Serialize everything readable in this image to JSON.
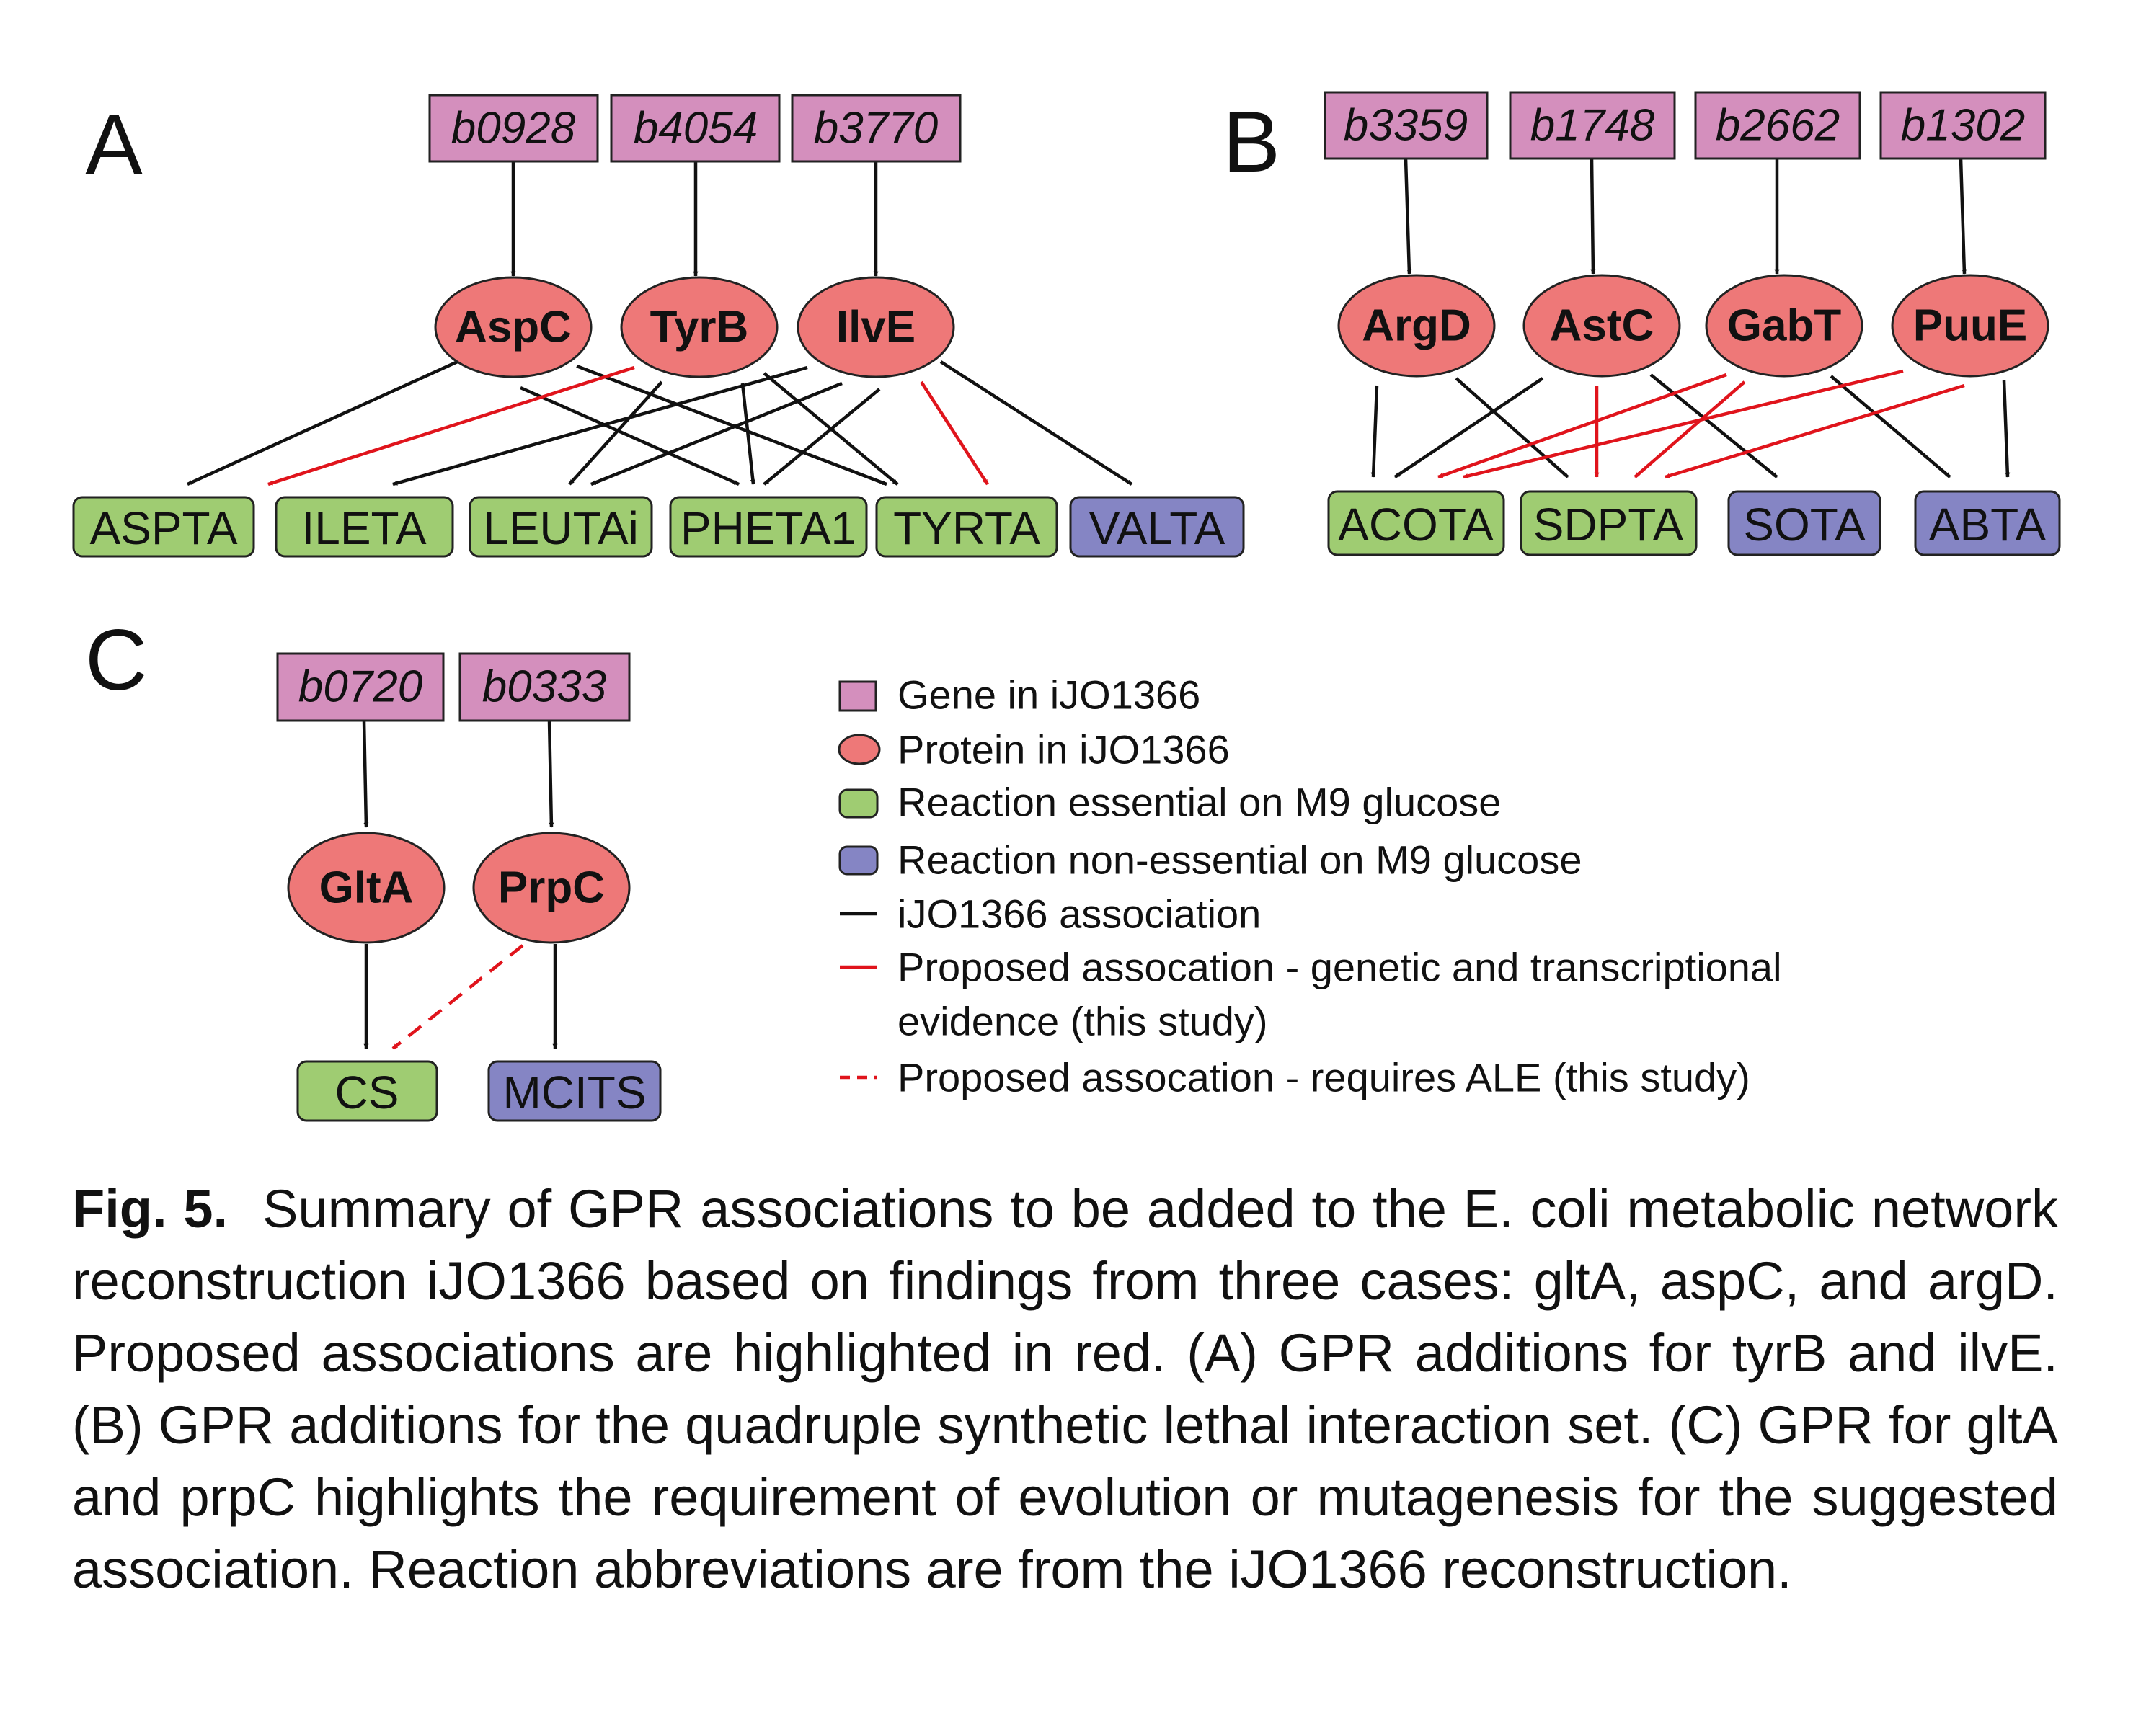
{
  "panels": {
    "A": {
      "letter": "A",
      "genes": [
        "b0928",
        "b4054",
        "b3770"
      ],
      "proteins": [
        "AspC",
        "TyrB",
        "IlvE"
      ],
      "reactions": [
        {
          "name": "ASPTA",
          "class": "essential"
        },
        {
          "name": "ILETA",
          "class": "essential"
        },
        {
          "name": "LEUTAi",
          "class": "essential"
        },
        {
          "name": "PHETA1",
          "class": "essential"
        },
        {
          "name": "TYRTA",
          "class": "essential"
        },
        {
          "name": "VALTA",
          "class": "non-essential"
        }
      ],
      "gene_protein": [
        [
          "b0928",
          "AspC"
        ],
        [
          "b4054",
          "TyrB"
        ],
        [
          "b3770",
          "IlvE"
        ]
      ],
      "protein_reaction": [
        {
          "from": "AspC",
          "to": "ASPTA",
          "type": "iJO1366"
        },
        {
          "from": "AspC",
          "to": "PHETA1",
          "type": "iJO1366"
        },
        {
          "from": "AspC",
          "to": "TYRTA",
          "type": "iJO1366"
        },
        {
          "from": "TyrB",
          "to": "ASPTA",
          "type": "proposed"
        },
        {
          "from": "TyrB",
          "to": "LEUTAi",
          "type": "iJO1366"
        },
        {
          "from": "TyrB",
          "to": "PHETA1",
          "type": "iJO1366"
        },
        {
          "from": "TyrB",
          "to": "TYRTA",
          "type": "iJO1366"
        },
        {
          "from": "IlvE",
          "to": "ILETA",
          "type": "iJO1366"
        },
        {
          "from": "IlvE",
          "to": "LEUTAi",
          "type": "iJO1366"
        },
        {
          "from": "IlvE",
          "to": "PHETA1",
          "type": "iJO1366"
        },
        {
          "from": "IlvE",
          "to": "TYRTA",
          "type": "proposed"
        },
        {
          "from": "IlvE",
          "to": "VALTA",
          "type": "iJO1366"
        }
      ]
    },
    "B": {
      "letter": "B",
      "genes": [
        "b3359",
        "b1748",
        "b2662",
        "b1302"
      ],
      "proteins": [
        "ArgD",
        "AstC",
        "GabT",
        "PuuE"
      ],
      "reactions": [
        {
          "name": "ACOTA",
          "class": "essential"
        },
        {
          "name": "SDPTA",
          "class": "essential"
        },
        {
          "name": "SOTA",
          "class": "non-essential"
        },
        {
          "name": "ABTA",
          "class": "non-essential"
        }
      ],
      "gene_protein": [
        [
          "b3359",
          "ArgD"
        ],
        [
          "b1748",
          "AstC"
        ],
        [
          "b2662",
          "GabT"
        ],
        [
          "b1302",
          "PuuE"
        ]
      ],
      "protein_reaction": [
        {
          "from": "ArgD",
          "to": "ACOTA",
          "type": "iJO1366"
        },
        {
          "from": "ArgD",
          "to": "SDPTA",
          "type": "iJO1366"
        },
        {
          "from": "AstC",
          "to": "ACOTA",
          "type": "iJO1366"
        },
        {
          "from": "AstC",
          "to": "SDPTA",
          "type": "proposed"
        },
        {
          "from": "AstC",
          "to": "SOTA",
          "type": "iJO1366"
        },
        {
          "from": "GabT",
          "to": "ACOTA",
          "type": "proposed"
        },
        {
          "from": "GabT",
          "to": "SDPTA",
          "type": "proposed"
        },
        {
          "from": "GabT",
          "to": "ABTA",
          "type": "iJO1366"
        },
        {
          "from": "PuuE",
          "to": "ACOTA",
          "type": "proposed"
        },
        {
          "from": "PuuE",
          "to": "SDPTA",
          "type": "proposed"
        },
        {
          "from": "PuuE",
          "to": "ABTA",
          "type": "iJO1366"
        }
      ]
    },
    "C": {
      "letter": "C",
      "genes": [
        "b0720",
        "b0333"
      ],
      "proteins": [
        "GltA",
        "PrpC"
      ],
      "reactions": [
        {
          "name": "CS",
          "class": "essential"
        },
        {
          "name": "MCITS",
          "class": "non-essential"
        }
      ],
      "gene_protein": [
        [
          "b0720",
          "GltA"
        ],
        [
          "b0333",
          "PrpC"
        ]
      ],
      "protein_reaction": [
        {
          "from": "GltA",
          "to": "CS",
          "type": "iJO1366"
        },
        {
          "from": "PrpC",
          "to": "CS",
          "type": "requires-ALE"
        },
        {
          "from": "PrpC",
          "to": "MCITS",
          "type": "iJO1366"
        }
      ]
    }
  },
  "legend": {
    "gene": "Gene in iJO1366",
    "protein": "Protein in iJO1366",
    "essential": "Reaction essential on M9 glucose",
    "nonessential": "Reaction non-essential on M9 glucose",
    "assoc": "iJO1366 association",
    "proposed_line1": "Proposed assocation - genetic and transcriptional",
    "proposed_line2": "evidence (this study)",
    "ale": "Proposed assocation - requires ALE (this study)"
  },
  "colors": {
    "gene": "#d48fbd",
    "protein": "#ee7878",
    "essential": "#9fcc72",
    "nonessential": "#8585c4",
    "iJO1366_edge": "#111111",
    "proposed_edge": "#e0141c"
  },
  "caption": {
    "label": "Fig. 5.",
    "text": "Summary of GPR associations to be added to the E. coli metabolic network reconstruction iJO1366 based on findings from three cases: gltA, aspC, and argD. Proposed associations are highlighted in red. (A) GPR additions for tyrB and ilvE. (B) GPR additions for the quadruple synthetic lethal interaction set. (C) GPR for gltA and prpC highlights the requirement of evolution or mutagenesis for the suggested association. Reaction abbreviations are from the iJO1366 reconstruction."
  }
}
